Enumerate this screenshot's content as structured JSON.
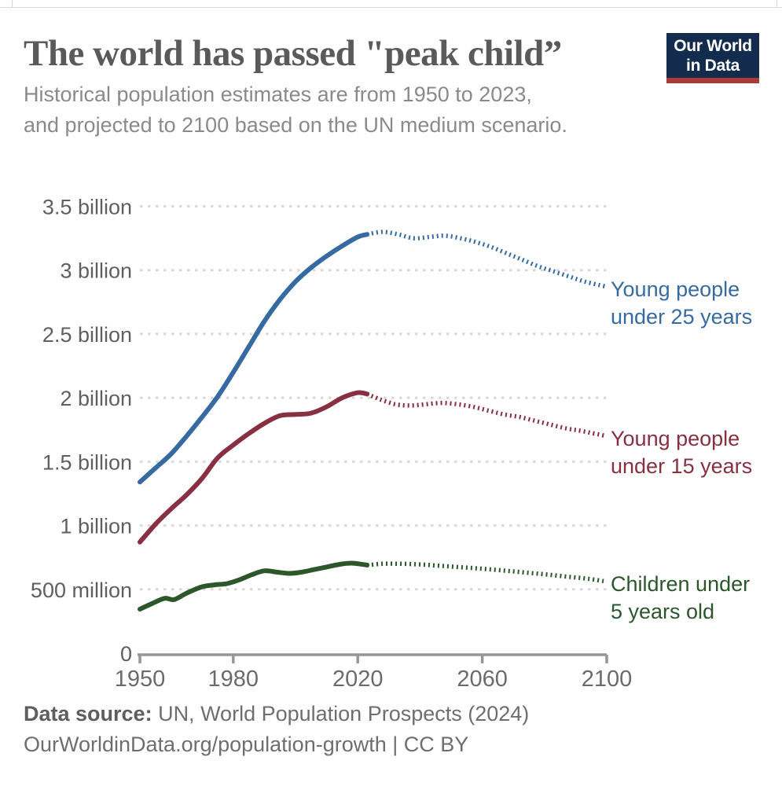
{
  "page": {
    "title": "The world has passed \"peak child”",
    "subtitle_line1": "Historical population estimates are from 1950 to 2023,",
    "subtitle_line2": "and projected to 2100 based on the UN medium scenario.",
    "logo": {
      "line1": "Our World",
      "line2": "in Data",
      "bg_color": "#132c4e",
      "accent_color": "#a93a3c"
    },
    "footer": {
      "source_label": "Data source:",
      "source_text": " UN, World Population Prospects (2024)",
      "link_text": "OurWorldinData.org/population-growth | CC BY"
    }
  },
  "chart_data": {
    "type": "line",
    "title": "The world has passed \"peak child”",
    "subtitle": "Historical population estimates are from 1950 to 2023, and projected to 2100 based on the UN medium scenario.",
    "grid": true,
    "legend_position": "right-edge-labels",
    "units": "people, billions",
    "projection_start_year": 2023,
    "x_axis": {
      "range": [
        1950,
        2100
      ],
      "ticks": [
        1950,
        1980,
        2020,
        2060,
        2100
      ]
    },
    "y_axis": {
      "range_billions": [
        0,
        3.5
      ],
      "ticks": [
        0,
        0.5,
        1,
        1.5,
        2,
        2.5,
        3,
        3.5
      ],
      "tick_labels": [
        "0",
        "500 million",
        "1 billion",
        "1.5 billion",
        "2 billion",
        "2.5 billion",
        "3 billion",
        "3.5 billion"
      ]
    },
    "series": [
      {
        "id": "under-25",
        "name": "Young people under 25 years",
        "label_lines": [
          "Young people",
          "under 25 years"
        ],
        "color": "#366ba2",
        "historical": [
          [
            1950,
            1.34
          ],
          [
            1955,
            1.45
          ],
          [
            1960,
            1.56
          ],
          [
            1965,
            1.7
          ],
          [
            1970,
            1.85
          ],
          [
            1975,
            2.01
          ],
          [
            1980,
            2.2
          ],
          [
            1985,
            2.4
          ],
          [
            1990,
            2.6
          ],
          [
            1995,
            2.77
          ],
          [
            2000,
            2.91
          ],
          [
            2005,
            3.02
          ],
          [
            2010,
            3.11
          ],
          [
            2015,
            3.19
          ],
          [
            2020,
            3.26
          ],
          [
            2023,
            3.28
          ]
        ],
        "projected": [
          [
            2023,
            3.28
          ],
          [
            2028,
            3.3
          ],
          [
            2033,
            3.28
          ],
          [
            2038,
            3.25
          ],
          [
            2043,
            3.26
          ],
          [
            2048,
            3.27
          ],
          [
            2053,
            3.25
          ],
          [
            2058,
            3.22
          ],
          [
            2063,
            3.18
          ],
          [
            2068,
            3.13
          ],
          [
            2073,
            3.08
          ],
          [
            2078,
            3.03
          ],
          [
            2083,
            2.99
          ],
          [
            2088,
            2.95
          ],
          [
            2093,
            2.91
          ],
          [
            2100,
            2.87
          ]
        ]
      },
      {
        "id": "under-15",
        "name": "Young people under 15 years",
        "label_lines": [
          "Young people",
          "under 15 years"
        ],
        "color": "#883042",
        "historical": [
          [
            1950,
            0.87
          ],
          [
            1955,
            1.01
          ],
          [
            1960,
            1.13
          ],
          [
            1965,
            1.24
          ],
          [
            1970,
            1.37
          ],
          [
            1975,
            1.53
          ],
          [
            1980,
            1.63
          ],
          [
            1985,
            1.72
          ],
          [
            1990,
            1.8
          ],
          [
            1995,
            1.86
          ],
          [
            2000,
            1.87
          ],
          [
            2005,
            1.88
          ],
          [
            2010,
            1.93
          ],
          [
            2015,
            2.0
          ],
          [
            2020,
            2.04
          ],
          [
            2023,
            2.03
          ]
        ],
        "projected": [
          [
            2023,
            2.03
          ],
          [
            2027,
            1.99
          ],
          [
            2032,
            1.95
          ],
          [
            2037,
            1.94
          ],
          [
            2042,
            1.95
          ],
          [
            2047,
            1.96
          ],
          [
            2052,
            1.95
          ],
          [
            2057,
            1.93
          ],
          [
            2062,
            1.9
          ],
          [
            2067,
            1.87
          ],
          [
            2072,
            1.85
          ],
          [
            2077,
            1.82
          ],
          [
            2082,
            1.79
          ],
          [
            2087,
            1.76
          ],
          [
            2092,
            1.74
          ],
          [
            2100,
            1.7
          ]
        ]
      },
      {
        "id": "under-5",
        "name": "Children under 5 years old",
        "label_lines": [
          "Children under",
          "5 years old"
        ],
        "color": "#2c572b",
        "historical": [
          [
            1950,
            0.345
          ],
          [
            1954,
            0.39
          ],
          [
            1958,
            0.43
          ],
          [
            1961,
            0.42
          ],
          [
            1965,
            0.47
          ],
          [
            1970,
            0.52
          ],
          [
            1974,
            0.535
          ],
          [
            1978,
            0.545
          ],
          [
            1982,
            0.575
          ],
          [
            1986,
            0.615
          ],
          [
            1990,
            0.645
          ],
          [
            1994,
            0.635
          ],
          [
            1998,
            0.625
          ],
          [
            2002,
            0.635
          ],
          [
            2006,
            0.655
          ],
          [
            2010,
            0.675
          ],
          [
            2014,
            0.695
          ],
          [
            2018,
            0.705
          ],
          [
            2023,
            0.69
          ]
        ],
        "projected": [
          [
            2023,
            0.69
          ],
          [
            2028,
            0.7
          ],
          [
            2034,
            0.7
          ],
          [
            2040,
            0.695
          ],
          [
            2046,
            0.685
          ],
          [
            2052,
            0.675
          ],
          [
            2058,
            0.665
          ],
          [
            2064,
            0.653
          ],
          [
            2070,
            0.64
          ],
          [
            2076,
            0.627
          ],
          [
            2082,
            0.613
          ],
          [
            2088,
            0.598
          ],
          [
            2094,
            0.583
          ],
          [
            2100,
            0.56
          ]
        ]
      }
    ]
  }
}
